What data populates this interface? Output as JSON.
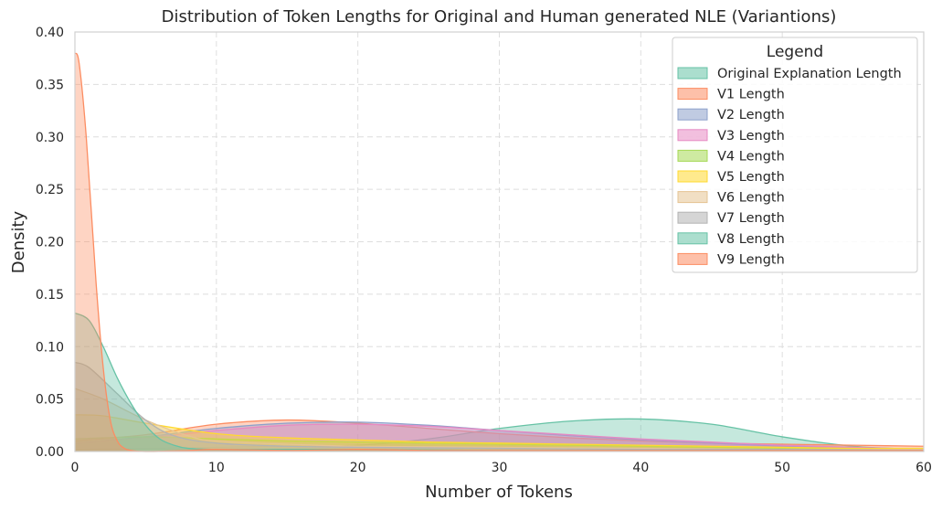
{
  "chart_data": {
    "type": "area",
    "title": "Distribution of Token Lengths for Original and Human generated NLE (Variantions)",
    "xlabel": "Number of Tokens",
    "ylabel": "Density",
    "xlim": [
      0,
      60
    ],
    "ylim": [
      0,
      0.4
    ],
    "xticks": [
      0,
      10,
      20,
      30,
      40,
      50,
      60
    ],
    "yticks": [
      0.0,
      0.05,
      0.1,
      0.15,
      0.2,
      0.25,
      0.3,
      0.35,
      0.4
    ],
    "grid": true,
    "legend": {
      "title": "Legend",
      "placement": "top-right"
    },
    "series": [
      {
        "name": "Original Explanation Length",
        "color": "#66c2a5",
        "x": [
          0,
          5,
          10,
          15,
          20,
          25,
          30,
          35,
          40,
          45,
          50,
          55,
          60
        ],
        "y": [
          0.002,
          0.003,
          0.004,
          0.005,
          0.006,
          0.012,
          0.022,
          0.029,
          0.031,
          0.026,
          0.014,
          0.005,
          0.002
        ]
      },
      {
        "name": "V1 Length",
        "color": "#fc8d62",
        "x": [
          0,
          5,
          10,
          15,
          20,
          25,
          30,
          35,
          40,
          45,
          50,
          55,
          60
        ],
        "y": [
          0.01,
          0.016,
          0.026,
          0.03,
          0.027,
          0.022,
          0.017,
          0.013,
          0.01,
          0.008,
          0.007,
          0.006,
          0.005
        ]
      },
      {
        "name": "V2 Length",
        "color": "#8da0cb",
        "x": [
          0,
          5,
          10,
          15,
          20,
          25,
          30,
          35,
          40,
          45,
          50,
          55,
          60
        ],
        "y": [
          0.008,
          0.014,
          0.022,
          0.027,
          0.028,
          0.025,
          0.02,
          0.015,
          0.011,
          0.008,
          0.005,
          0.003,
          0.002
        ]
      },
      {
        "name": "V3 Length",
        "color": "#e78ac3",
        "x": [
          0,
          5,
          10,
          15,
          20,
          25,
          30,
          35,
          40,
          45,
          50,
          55,
          60
        ],
        "y": [
          0.008,
          0.013,
          0.02,
          0.025,
          0.026,
          0.024,
          0.02,
          0.016,
          0.012,
          0.009,
          0.006,
          0.004,
          0.002
        ]
      },
      {
        "name": "V4 Length",
        "color": "#a6d854",
        "x": [
          0,
          5,
          10,
          15,
          20,
          25,
          30,
          35,
          40,
          45,
          50,
          55,
          60
        ],
        "y": [
          0.012,
          0.014,
          0.012,
          0.01,
          0.009,
          0.008,
          0.007,
          0.006,
          0.005,
          0.004,
          0.003,
          0.002,
          0.002
        ]
      },
      {
        "name": "V5 Length",
        "color": "#ffd92f",
        "x": [
          0,
          2,
          5,
          10,
          15,
          20,
          25,
          30,
          35,
          40,
          45,
          50,
          55,
          60
        ],
        "y": [
          0.035,
          0.034,
          0.027,
          0.017,
          0.013,
          0.011,
          0.009,
          0.008,
          0.007,
          0.006,
          0.005,
          0.004,
          0.003,
          0.003
        ]
      },
      {
        "name": "V6 Length",
        "color": "#e5c494",
        "x": [
          0,
          2,
          5,
          8,
          10,
          15,
          20,
          30,
          40,
          50,
          60
        ],
        "y": [
          0.06,
          0.05,
          0.03,
          0.015,
          0.01,
          0.007,
          0.005,
          0.004,
          0.003,
          0.002,
          0.002
        ]
      },
      {
        "name": "V7 Length",
        "color": "#b3b3b3",
        "x": [
          0,
          1,
          3,
          5,
          7,
          10,
          15,
          20,
          30,
          40,
          50,
          60
        ],
        "y": [
          0.085,
          0.08,
          0.055,
          0.03,
          0.015,
          0.008,
          0.005,
          0.004,
          0.003,
          0.002,
          0.002,
          0.001
        ]
      },
      {
        "name": "V8 Length",
        "color": "#66c2a5",
        "x": [
          0,
          1,
          2,
          3,
          4,
          5,
          6,
          7,
          8,
          10,
          15,
          20,
          30,
          40,
          60
        ],
        "y": [
          0.132,
          0.125,
          0.1,
          0.07,
          0.045,
          0.025,
          0.012,
          0.006,
          0.003,
          0.002,
          0.002,
          0.002,
          0.001,
          0.001,
          0.001
        ]
      },
      {
        "name": "V9 Length",
        "color": "#fc8d62",
        "x": [
          0,
          0.3,
          0.8,
          1.5,
          2.0,
          2.5,
          3.0,
          3.5,
          4.0,
          5.0,
          8.0,
          10,
          15,
          20,
          25,
          30,
          40,
          50,
          60
        ],
        "y": [
          0.38,
          0.37,
          0.3,
          0.16,
          0.08,
          0.03,
          0.01,
          0.003,
          0.001,
          0.0,
          0.001,
          0.002,
          0.001,
          0.002,
          0.001,
          0.001,
          0.001,
          0.001,
          0.001
        ]
      }
    ]
  }
}
